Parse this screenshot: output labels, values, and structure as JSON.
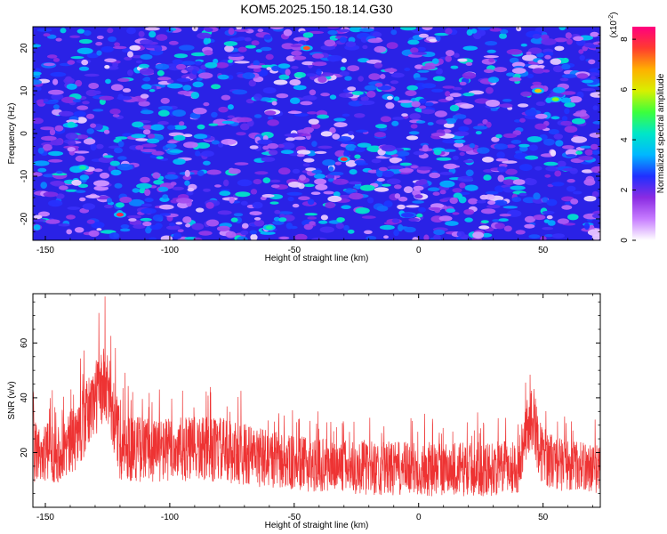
{
  "title": "KOM5.2025.150.18.14.G30",
  "chart_data": [
    {
      "type": "heatmap",
      "xlabel": "Height of straight line (km)",
      "ylabel": "Frequency (Hz)",
      "xlim": [
        -155,
        73
      ],
      "ylim": [
        -25,
        25
      ],
      "xticks": [
        -150,
        -100,
        -50,
        0,
        50
      ],
      "yticks": [
        -20,
        -10,
        0,
        10,
        20
      ],
      "colorbar": {
        "label": "Normalized spectral amplitude",
        "multiplier": "(x10",
        "multiplier_exp": "-2",
        "multiplier_close": ")",
        "range": [
          0,
          8.5
        ],
        "ticks": [
          0,
          2,
          4,
          6,
          8
        ],
        "colors": [
          "#ffffff",
          "#c77dff",
          "#8a2be2",
          "#2030ff",
          "#00b7ff",
          "#00e6c8",
          "#3cff3c",
          "#d8f000",
          "#ffb000",
          "#ff3b2f",
          "#ff007f"
        ]
      },
      "hotspots": [
        {
          "x": -120,
          "y": -19,
          "v": 8.0
        },
        {
          "x": -45,
          "y": 20,
          "v": 7.5
        },
        {
          "x": -30,
          "y": -6,
          "v": 7.8
        },
        {
          "x": 48,
          "y": 10,
          "v": 6.5
        },
        {
          "x": 55,
          "y": 8,
          "v": 5.5
        },
        {
          "x": -135,
          "y": -8,
          "v": 4.5
        },
        {
          "x": -60,
          "y": -22,
          "v": 4.5
        }
      ]
    },
    {
      "type": "line",
      "xlabel": "Height of straight line (km)",
      "ylabel": "SNR (v/v)",
      "xlim": [
        -155,
        73
      ],
      "ylim": [
        0,
        78
      ],
      "xticks": [
        -150,
        -100,
        -50,
        0,
        50
      ],
      "yticks": [
        20,
        40,
        60
      ],
      "color": "#ee3333",
      "envelope": {
        "x": [
          -155,
          -145,
          -140,
          -135,
          -130,
          -127,
          -124,
          -120,
          -110,
          -100,
          -80,
          -62,
          -50,
          -30,
          -10,
          10,
          30,
          40,
          43,
          46,
          49,
          55,
          65,
          73
        ],
        "center": [
          20,
          20,
          23,
          30,
          40,
          44,
          40,
          23,
          21,
          21,
          21,
          18,
          16,
          15,
          14,
          14,
          14,
          15,
          28,
          33,
          20,
          16,
          15,
          14
        ],
        "spread": [
          11,
          11,
          12,
          13,
          14,
          15,
          14,
          13,
          12,
          12,
          12,
          11,
          10,
          10,
          10,
          10,
          10,
          10,
          11,
          12,
          11,
          10,
          9,
          9
        ]
      },
      "peak": {
        "x": -126,
        "y": 77
      }
    }
  ]
}
